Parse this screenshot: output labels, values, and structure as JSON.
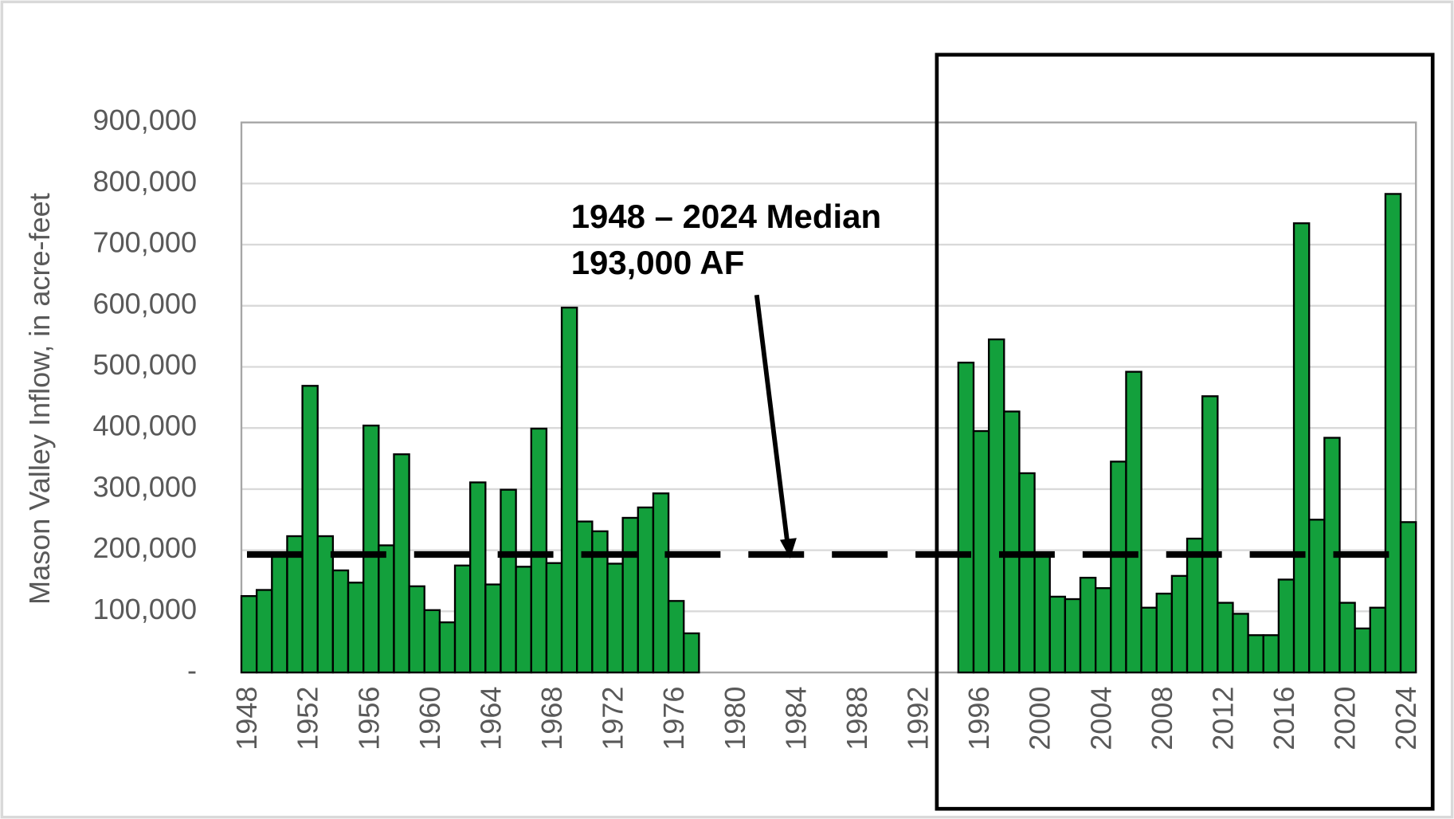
{
  "chart_data": {
    "type": "bar",
    "y_axis_label": "Mason Valley Inflow, in acre-feet",
    "annotation": [
      "1948 – 2024 Median",
      "193,000 AF"
    ],
    "median": 193000,
    "color": "#13a03c",
    "categories": [
      "1948",
      null,
      null,
      null,
      "1952",
      null,
      null,
      null,
      "1956",
      null,
      null,
      null,
      "1960",
      null,
      null,
      null,
      "1964",
      null,
      null,
      null,
      "1968",
      null,
      null,
      null,
      "1972",
      null,
      null,
      null,
      "1976",
      null,
      null,
      null,
      "1980",
      null,
      null,
      null,
      "1984",
      null,
      null,
      null,
      "1988",
      null,
      null,
      null,
      "1992",
      null,
      null,
      null,
      "1996",
      null,
      null,
      null,
      "2000",
      null,
      null,
      null,
      "2004",
      null,
      null,
      null,
      "2008",
      null,
      null,
      null,
      "2012",
      null,
      null,
      null,
      "2016",
      null,
      null,
      null,
      "2020",
      null,
      null,
      null,
      "2024"
    ],
    "values": [
      125000,
      135000,
      190000,
      223000,
      469000,
      223000,
      167000,
      147000,
      404000,
      208000,
      357000,
      141000,
      102000,
      82000,
      175000,
      311000,
      144000,
      299000,
      173000,
      399000,
      179000,
      597000,
      247000,
      231000,
      178000,
      253000,
      270000,
      293000,
      117000,
      64000,
      null,
      null,
      null,
      null,
      null,
      null,
      null,
      null,
      null,
      null,
      null,
      null,
      null,
      null,
      null,
      null,
      null,
      507000,
      395000,
      545000,
      427000,
      326000,
      190000,
      124000,
      120000,
      155000,
      138000,
      345000,
      492000,
      106000,
      129000,
      158000,
      219000,
      452000,
      114000,
      96000,
      61000,
      61000,
      152000,
      735000,
      250000,
      384000,
      114000,
      72000,
      106000,
      783000,
      246000
    ],
    "ylim": [
      0,
      900000
    ],
    "yticks": [
      {
        "value": 0,
        "label": "-"
      },
      {
        "value": 100000,
        "label": "100,000"
      },
      {
        "value": 200000,
        "label": "200,000"
      },
      {
        "value": 300000,
        "label": "300,000"
      },
      {
        "value": 400000,
        "label": "400,000"
      },
      {
        "value": 500000,
        "label": "500,000"
      },
      {
        "value": 600000,
        "label": "600,000"
      },
      {
        "value": 700000,
        "label": "700,000"
      },
      {
        "value": 800000,
        "label": "800,000"
      },
      {
        "value": 900000,
        "label": "900,000"
      }
    ],
    "grid": true
  }
}
